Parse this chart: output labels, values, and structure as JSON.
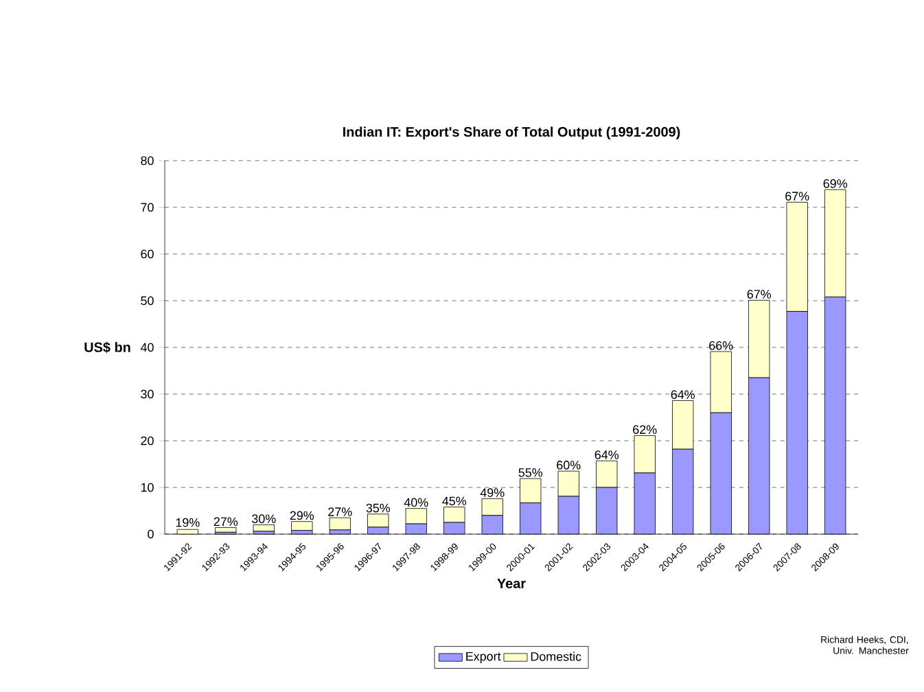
{
  "chart_data": {
    "type": "bar",
    "title": "Indian IT: Export's Share of Total Output (1991-2009)",
    "xlabel": "Year",
    "ylabel": "US$ bn",
    "categories": [
      "1991-92",
      "1992-93",
      "1993-94",
      "1994-95",
      "1995-96",
      "1996-97",
      "1997-98",
      "1998-99",
      "1999-00",
      "2000-01",
      "2001-02",
      "2002-03",
      "2003-04",
      "2004-05",
      "2005-06",
      "2006-07",
      "2007-08",
      "2008-09"
    ],
    "series": [
      {
        "name": "Export",
        "color": "#9999ff",
        "values": [
          null,
          0.4,
          0.6,
          0.8,
          0.9,
          1.5,
          2.2,
          2.5,
          4.0,
          6.7,
          8.1,
          10.0,
          13.1,
          18.2,
          26.0,
          33.5,
          47.7,
          50.8
        ]
      },
      {
        "name": "Domestic",
        "color": "#ffffcc",
        "values": [
          1.0,
          1.0,
          1.4,
          1.9,
          2.6,
          2.8,
          3.3,
          3.3,
          3.6,
          5.2,
          5.4,
          5.7,
          8.0,
          10.4,
          13.1,
          16.6,
          23.4,
          23.0
        ]
      }
    ],
    "stacked": true,
    "ylim": [
      0,
      80
    ],
    "yticks": [
      0,
      10,
      20,
      30,
      40,
      50,
      60,
      70,
      80
    ],
    "grid": "y",
    "legend": "bottom",
    "annotations": [
      {
        "text": "19%",
        "x": "1991-92",
        "y": 1.2
      },
      {
        "text": "27%",
        "x": "1992-93",
        "y": 1.4
      },
      {
        "text": "30%",
        "x": "1993-94",
        "y": 2.0
      },
      {
        "text": "29%",
        "x": "1994-95",
        "y": 2.7
      },
      {
        "text": "27%",
        "x": "1995-96",
        "y": 3.5
      },
      {
        "text": "35%",
        "x": "1996-97",
        "y": 4.3
      },
      {
        "text": "40%",
        "x": "1997-98",
        "y": 5.5
      },
      {
        "text": "45%",
        "x": "1998-99",
        "y": 5.8
      },
      {
        "text": "49%",
        "x": "1999-00",
        "y": 7.6
      },
      {
        "text": "55%",
        "x": "2000-01",
        "y": 11.9
      },
      {
        "text": "60%",
        "x": "2001-02",
        "y": 13.5
      },
      {
        "text": "64%",
        "x": "2002-03",
        "y": 15.7
      },
      {
        "text": "62%",
        "x": "2003-04",
        "y": 21.1
      },
      {
        "text": "64%",
        "x": "2004-05",
        "y": 28.6
      },
      {
        "text": "66%",
        "x": "2005-06",
        "y": 39.1
      },
      {
        "text": "67%",
        "x": "2006-07",
        "y": 50.1
      },
      {
        "text": "67%",
        "x": "2007-08",
        "y": 71.1
      },
      {
        "text": "69%",
        "x": "2008-09",
        "y": 73.8
      },
      "Richard Heeks, CDI, Univ. Manchester"
    ]
  }
}
